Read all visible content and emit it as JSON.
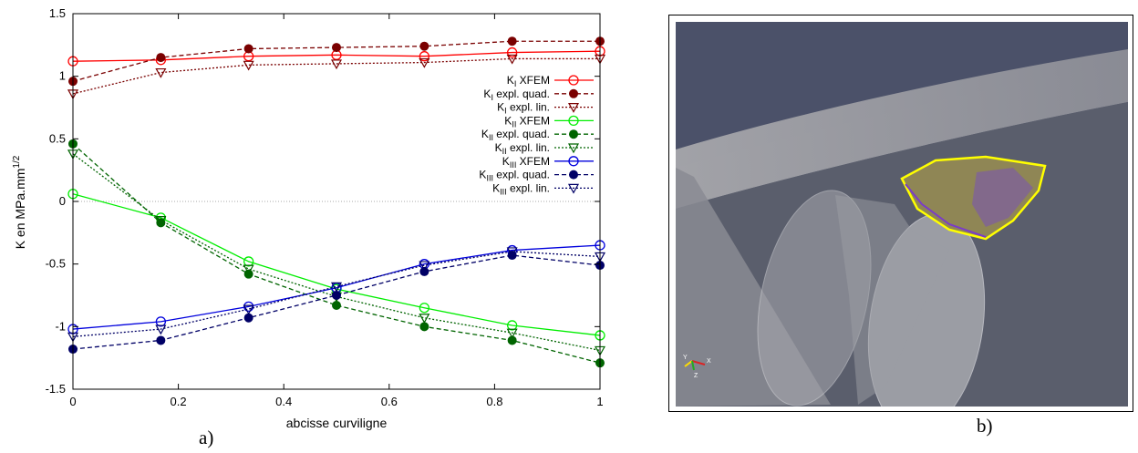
{
  "chart_data": {
    "type": "line",
    "xlabel": "abcisse curviligne",
    "ylabel": "K en MPa.mm",
    "ylabel_exponent": "1/2",
    "xlim": [
      0,
      1
    ],
    "ylim": [
      -1.5,
      1.5
    ],
    "x_ticks": [
      "0",
      "0.2",
      "0.4",
      "0.6",
      "0.8",
      "1"
    ],
    "y_ticks": [
      "1.5",
      "1",
      "0.5",
      "0",
      "-0.5",
      "-1",
      "-1.5"
    ],
    "legend_position": "right",
    "x": [
      0,
      0.1667,
      0.3333,
      0.5,
      0.6667,
      0.8333,
      1
    ],
    "series": [
      {
        "name": "K_I XFEM",
        "name_main": "K",
        "name_sub": "I",
        "name_rest": " XFEM",
        "color": "#ff0000",
        "dash": "solid",
        "marker": "circle-open",
        "values": [
          1.12,
          1.13,
          1.16,
          1.17,
          1.16,
          1.19,
          1.2
        ]
      },
      {
        "name": "K_I expl. quad.",
        "name_main": "K",
        "name_sub": "I",
        "name_rest": " expl. quad.",
        "color": "#7a0000",
        "dash": "dashed",
        "marker": "circle-filled",
        "values": [
          0.96,
          1.15,
          1.22,
          1.23,
          1.24,
          1.28,
          1.28
        ]
      },
      {
        "name": "K_I expl. lin.",
        "name_main": "K",
        "name_sub": "I",
        "name_rest": " expl. lin.",
        "color": "#7a0000",
        "dash": "dotted",
        "marker": "triangle-open",
        "values": [
          0.86,
          1.03,
          1.09,
          1.1,
          1.11,
          1.14,
          1.14
        ]
      },
      {
        "name": "K_II XFEM",
        "name_main": "K",
        "name_sub": "II",
        "name_rest": " XFEM",
        "color": "#00ee00",
        "dash": "solid",
        "marker": "circle-open",
        "values": [
          0.06,
          -0.13,
          -0.48,
          -0.7,
          -0.85,
          -0.99,
          -1.07
        ]
      },
      {
        "name": "K_II expl. quad.",
        "name_main": "K",
        "name_sub": "II",
        "name_rest": " expl. quad.",
        "color": "#006400",
        "dash": "dashed",
        "marker": "circle-filled",
        "values": [
          0.46,
          -0.17,
          -0.58,
          -0.83,
          -1.0,
          -1.11,
          -1.29
        ]
      },
      {
        "name": "K_II expl. lin.",
        "name_main": "K",
        "name_sub": "II",
        "name_rest": " expl. lin.",
        "color": "#006400",
        "dash": "dotted",
        "marker": "triangle-open",
        "values": [
          0.38,
          -0.15,
          -0.54,
          -0.76,
          -0.93,
          -1.05,
          -1.19
        ]
      },
      {
        "name": "K_III XFEM",
        "name_main": "K",
        "name_sub": "III",
        "name_rest": " XFEM",
        "color": "#0000dd",
        "dash": "solid",
        "marker": "circle-open",
        "values": [
          -1.02,
          -0.96,
          -0.84,
          -0.69,
          -0.5,
          -0.39,
          -0.35
        ]
      },
      {
        "name": "K_III expl. quad.",
        "name_main": "K",
        "name_sub": "III",
        "name_rest": " expl. quad.",
        "color": "#000066",
        "dash": "dashed",
        "marker": "circle-filled",
        "values": [
          -1.18,
          -1.11,
          -0.93,
          -0.75,
          -0.56,
          -0.43,
          -0.51
        ]
      },
      {
        "name": "K_III expl. lin.",
        "name_main": "K",
        "name_sub": "III",
        "name_rest": " expl. lin.",
        "color": "#000066",
        "dash": "dotted",
        "marker": "triangle-open",
        "values": [
          -1.08,
          -1.02,
          -0.86,
          -0.68,
          -0.51,
          -0.4,
          -0.44
        ]
      }
    ]
  },
  "panels": {
    "left_label": "a)",
    "right_label": "b)"
  },
  "render": {
    "axes_widget_labels": [
      "Y",
      "Z",
      "X"
    ]
  }
}
